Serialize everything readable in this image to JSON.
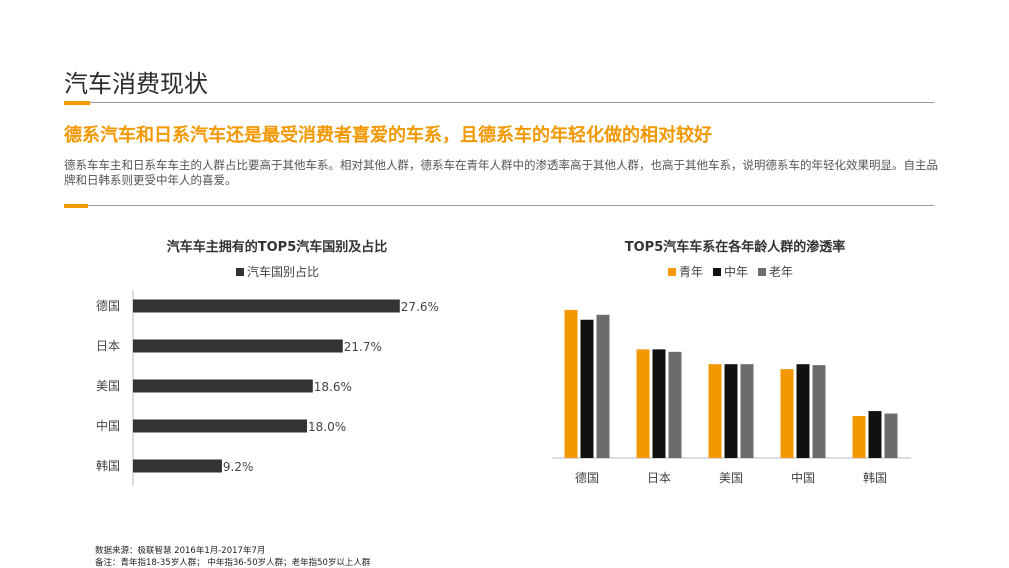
{
  "page": {
    "title": "汽车消费现状",
    "headline": "德系汽车和日系汽车还是最受消费者喜爱的车系，且德系车的年轻化做的相对较好",
    "description": "德系车车主和日系车车主的人群占比要高于其他车系。相对其他人群，德系车在青年人群中的渗透率高于其他人群，也高于其他车系，说明德系车的年轻化效果明显。自主品牌和日韩系则更受中年人的喜爱。",
    "source_note": "数据来源：极联智慧  2016年1月-2017年7月",
    "remark_note": "备注：青年指18-35岁人群；  中年指36-50岁人群；老年指50岁以上人群"
  },
  "colors": {
    "accent": "#f39800",
    "bar_dark": "#333333",
    "series_young": "#f39800",
    "series_middle": "#111111",
    "series_old": "#6b6b6b"
  },
  "chart_data": [
    {
      "type": "bar",
      "orientation": "horizontal",
      "title": "汽车车主拥有的TOP5汽车国别及占比",
      "legend": [
        "汽车国别占比"
      ],
      "legend_position": "top",
      "categories": [
        "德国",
        "日本",
        "美国",
        "中国",
        "韩国"
      ],
      "series": [
        {
          "name": "汽车国别占比",
          "values": [
            27.6,
            21.7,
            18.6,
            18.0,
            9.2
          ],
          "labels": [
            "27.6%",
            "21.7%",
            "18.6%",
            "18.0%",
            "9.2%"
          ]
        }
      ],
      "xlim": [
        0,
        30
      ],
      "grid": false
    },
    {
      "type": "bar",
      "orientation": "vertical",
      "title": "TOP5汽车车系在各年龄人群的渗透率",
      "legend": [
        "青年",
        "中年",
        "老年"
      ],
      "legend_position": "top",
      "categories": [
        "德国",
        "日本",
        "美国",
        "中国",
        "韩国"
      ],
      "series": [
        {
          "name": "青年",
          "values": [
            30,
            22,
            19,
            18,
            8.5
          ]
        },
        {
          "name": "中年",
          "values": [
            28,
            22,
            19,
            19,
            9.5
          ]
        },
        {
          "name": "老年",
          "values": [
            29,
            21.5,
            19,
            18.8,
            9
          ]
        }
      ],
      "ylim": [
        0,
        32
      ],
      "y_ticks_shown": false,
      "grid": false
    }
  ]
}
